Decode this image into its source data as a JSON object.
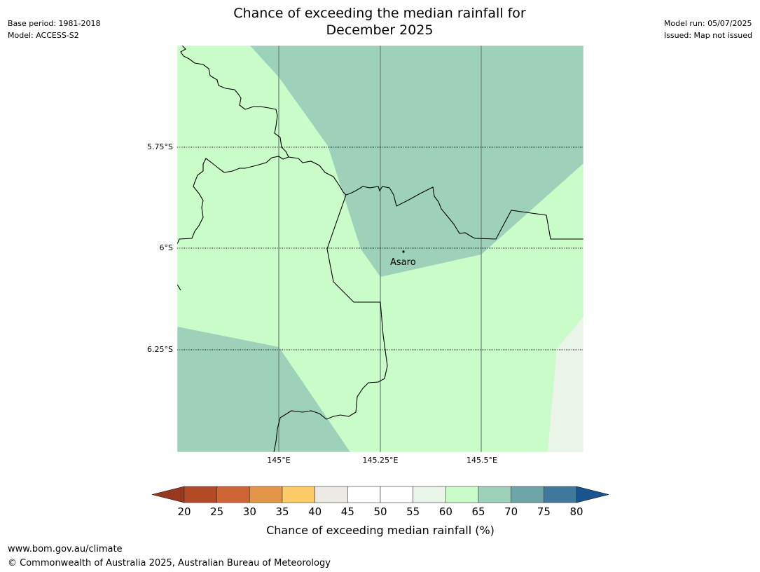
{
  "header": {
    "title_line1": "Chance of exceeding the median rainfall for",
    "title_line2": "December 2025",
    "base_period": "Base period: 1981-2018",
    "model": "Model: ACCESS-S2",
    "model_run": "Model run: 05/07/2025",
    "issued": "Issued: Map not issued"
  },
  "map": {
    "latitude_labels": [
      "5.75°S",
      "6°S",
      "6.25°S"
    ],
    "longitude_labels": [
      "145°E",
      "145.25°E",
      "145.5°E"
    ],
    "place": {
      "name": "Asaro"
    },
    "colors": {
      "land_60_65": "#c9fcc9",
      "band_65_70": "#9ed1ba",
      "band_55_60": "#eaf5ea"
    }
  },
  "colorbar": {
    "ticks": [
      "20",
      "25",
      "30",
      "35",
      "40",
      "45",
      "50",
      "55",
      "60",
      "65",
      "70",
      "75",
      "80"
    ],
    "label": "Chance of exceeding median rainfall (%)",
    "low_extend_color": "#97391f",
    "high_extend_color": "#18548f",
    "colors": [
      "#b24a26",
      "#cd6434",
      "#e49547",
      "#fecb69",
      "#ede9e5",
      "#ffffff",
      "#ffffff",
      "#eaf5ea",
      "#c9fcc9",
      "#9ed1ba",
      "#6ea5a8",
      "#3f7a9e"
    ]
  },
  "footer": {
    "url": "www.bom.gov.au/climate",
    "copyright": "© Commonwealth of Australia 2025, Australian Bureau of Meteorology"
  }
}
